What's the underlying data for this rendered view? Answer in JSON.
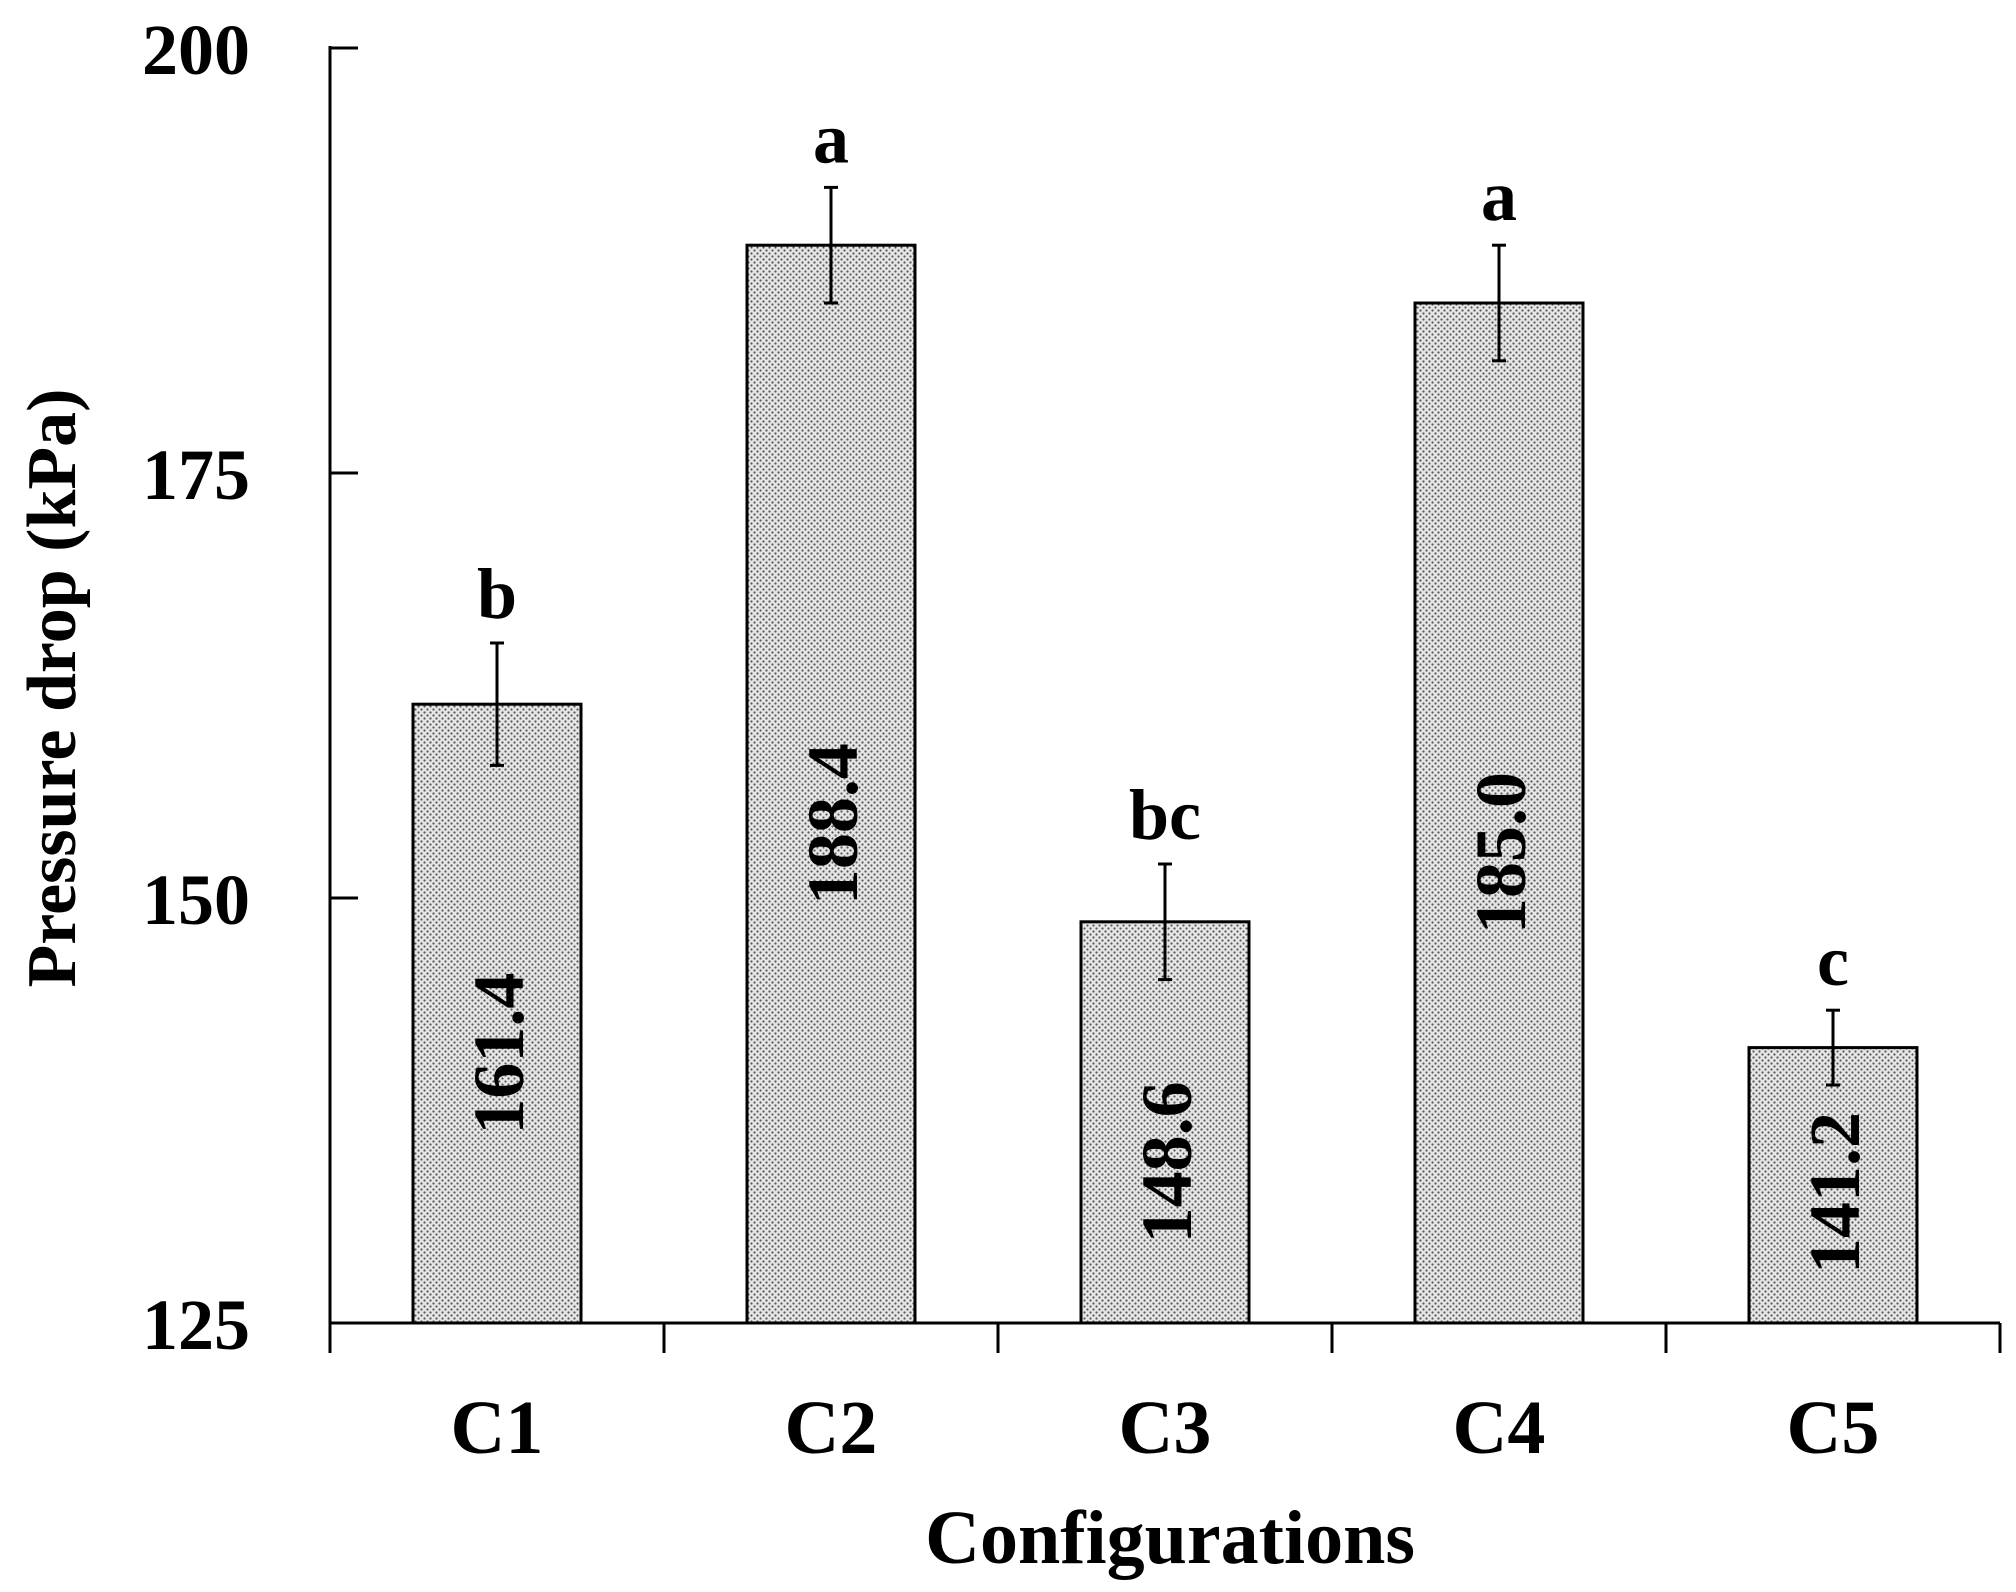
{
  "chart_data": {
    "type": "bar",
    "categories": [
      "C1",
      "C2",
      "C3",
      "C4",
      "C5"
    ],
    "values": [
      161.4,
      188.4,
      148.6,
      185.0,
      141.2
    ],
    "value_labels": [
      "161.4",
      "188.4",
      "148.6",
      "185.0",
      "141.2"
    ],
    "error": [
      3.6,
      3.4,
      3.4,
      3.4,
      2.2
    ],
    "significance_letters": [
      "b",
      "a",
      "bc",
      "a",
      "c"
    ],
    "xlabel": "Configurations",
    "ylabel": "Pressure drop (kPa)",
    "ylim": [
      125,
      200
    ],
    "yticks": [
      125,
      150,
      175,
      200
    ],
    "grid": false,
    "legend": "none",
    "bar_fill": "#d9d9d9",
    "bar_pattern": "stipple",
    "ink": "#000000"
  }
}
